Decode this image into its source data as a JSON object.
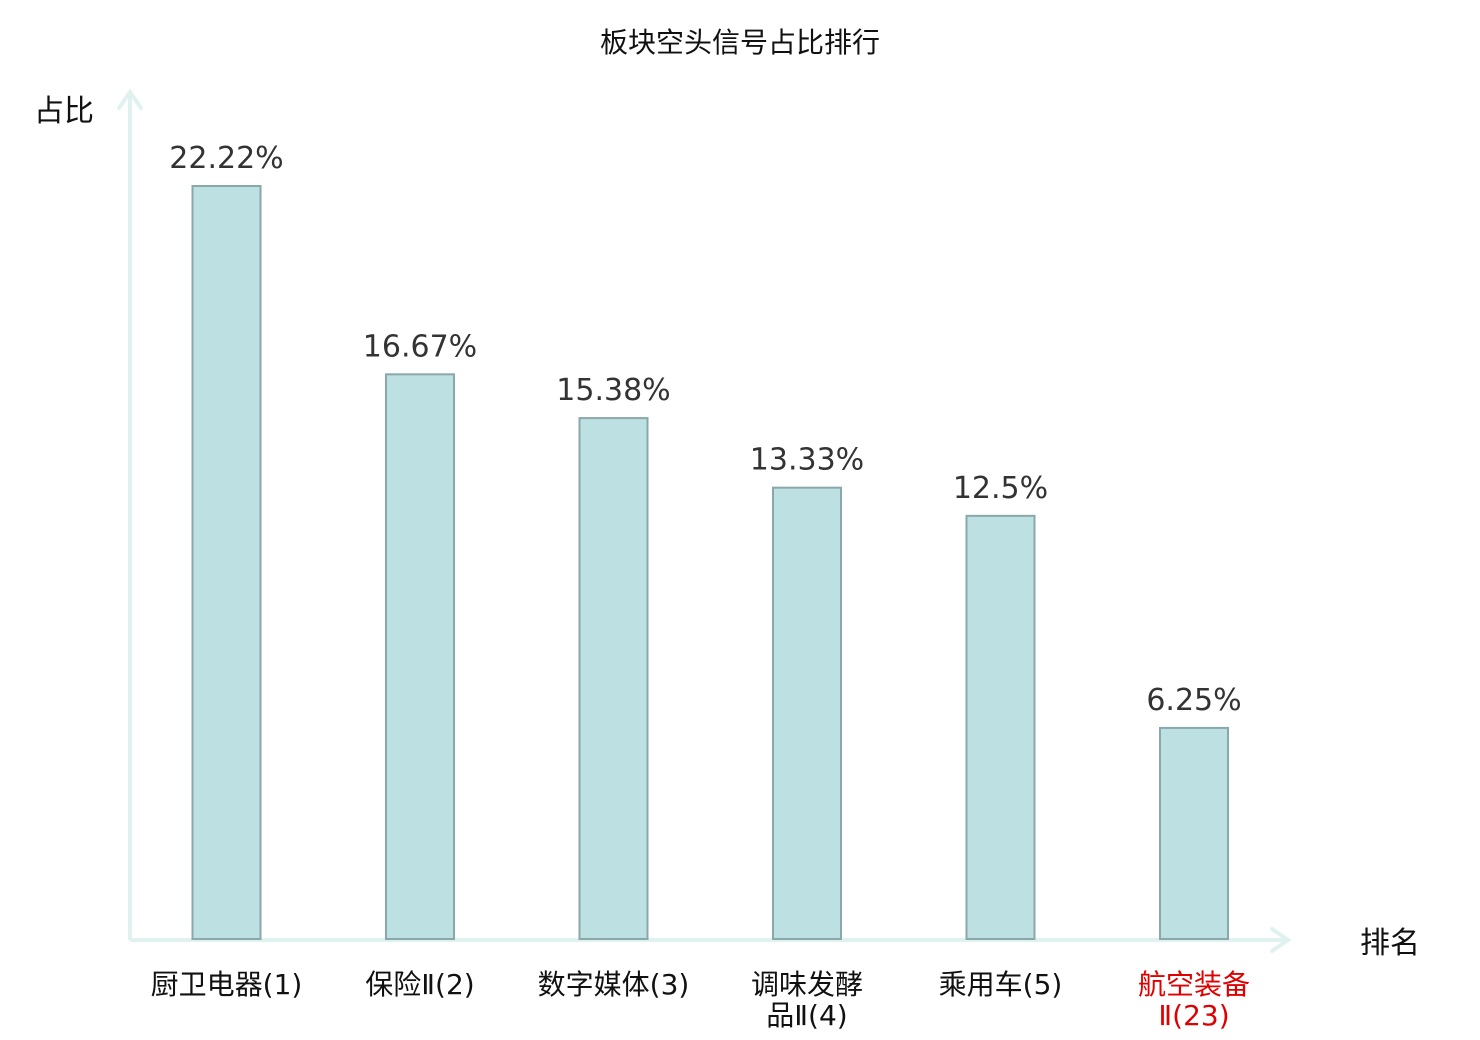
{
  "chart_data": {
    "type": "bar",
    "title": "板块空头信号占比排行",
    "ylabel": "占比",
    "xlabel": "排名",
    "categories": [
      {
        "lines": [
          "厨卫电器(1)"
        ],
        "highlight": false
      },
      {
        "lines": [
          "保险Ⅱ(2)"
        ],
        "highlight": false
      },
      {
        "lines": [
          "数字媒体(3)"
        ],
        "highlight": false
      },
      {
        "lines": [
          "调味发酵",
          "品Ⅱ(4)"
        ],
        "highlight": false
      },
      {
        "lines": [
          "乘用车(5)"
        ],
        "highlight": false
      },
      {
        "lines": [
          "航空装备",
          "Ⅱ(23)"
        ],
        "highlight": true
      }
    ],
    "values": [
      22.22,
      16.67,
      15.38,
      13.33,
      12.5,
      6.25
    ],
    "value_labels": [
      "22.22%",
      "16.67%",
      "15.38%",
      "13.33%",
      "12.5%",
      "6.25%"
    ],
    "ylim": [
      0,
      22.22
    ],
    "grid": false,
    "colors": {
      "bar_fill": "#bde0e3",
      "bar_stroke": "#8aa7aa",
      "axis": "#e0f2ef",
      "highlight_text": "#e00000",
      "text": "#111111",
      "value_text": "#333333"
    }
  }
}
